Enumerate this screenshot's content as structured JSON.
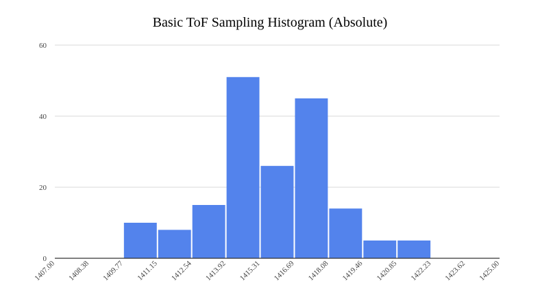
{
  "chart_data": {
    "type": "bar",
    "title": "Basic ToF Sampling Histogram (Absolute)",
    "xlabel": "",
    "ylabel": "",
    "ylim": [
      0,
      60
    ],
    "y_ticks": [
      "0",
      "20",
      "40",
      "60"
    ],
    "x_ticks": [
      "1407.00",
      "1408.38",
      "1409.77",
      "1411.15",
      "1412.54",
      "1413.92",
      "1415.31",
      "1416.69",
      "1418.08",
      "1419.46",
      "1420.85",
      "1422.23",
      "1423.62",
      "1425.00"
    ],
    "bins": [
      {
        "from": "1407.00",
        "to": "1408.38",
        "value": 0
      },
      {
        "from": "1408.38",
        "to": "1409.77",
        "value": 0
      },
      {
        "from": "1409.77",
        "to": "1411.15",
        "value": 10
      },
      {
        "from": "1411.15",
        "to": "1412.54",
        "value": 8
      },
      {
        "from": "1412.54",
        "to": "1413.92",
        "value": 15
      },
      {
        "from": "1413.92",
        "to": "1415.31",
        "value": 51
      },
      {
        "from": "1415.31",
        "to": "1416.69",
        "value": 26
      },
      {
        "from": "1416.69",
        "to": "1418.08",
        "value": 45
      },
      {
        "from": "1418.08",
        "to": "1419.46",
        "value": 14
      },
      {
        "from": "1419.46",
        "to": "1420.85",
        "value": 5
      },
      {
        "from": "1420.85",
        "to": "1422.23",
        "value": 5
      },
      {
        "from": "1422.23",
        "to": "1423.62",
        "value": 0
      },
      {
        "from": "1423.62",
        "to": "1425.00",
        "value": 0
      }
    ],
    "grid": true,
    "bar_color": "#5383EC",
    "grid_color": "#D9D9D9",
    "axis_color": "#333333"
  }
}
